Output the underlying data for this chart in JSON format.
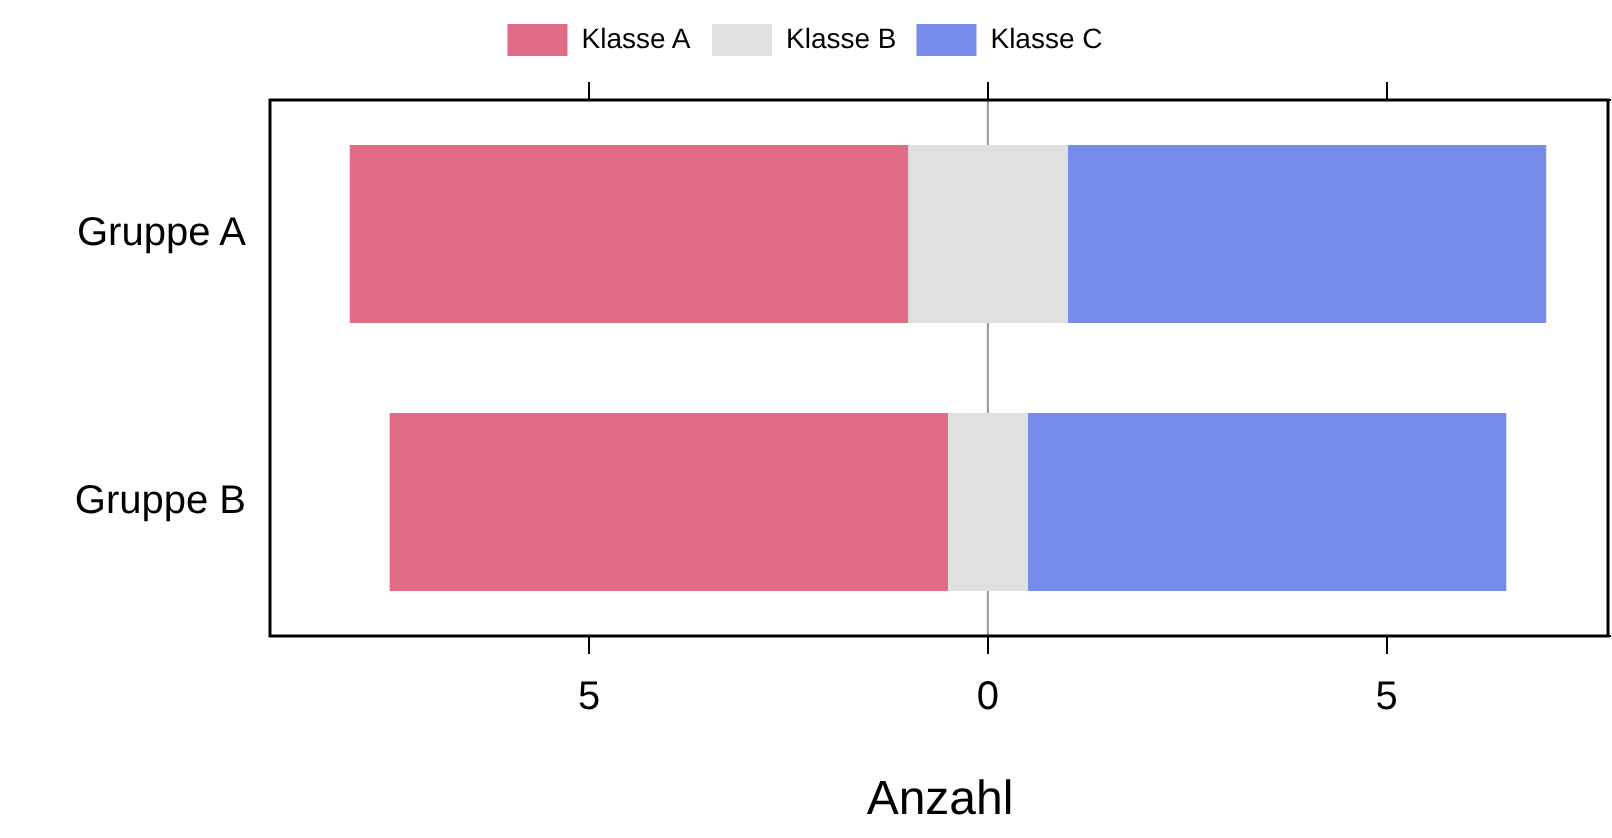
{
  "chart_data": {
    "type": "bar",
    "orientation": "horizontal",
    "xlabel": "Anzahl",
    "categories": [
      "Gruppe A",
      "Gruppe B"
    ],
    "series": [
      {
        "name": "Klasse A",
        "color": "#e06c85",
        "base": [
          -8,
          -7.5
        ],
        "values": [
          7,
          7
        ]
      },
      {
        "name": "Klasse B",
        "color": "#e0e0e0",
        "base": [
          -1,
          -0.5
        ],
        "values": [
          2,
          1
        ]
      },
      {
        "name": "Klasse C",
        "color": "#778beb",
        "base": [
          1,
          0.5
        ],
        "values": [
          6,
          6
        ]
      }
    ],
    "xlim": [
      -9,
      7.8
    ],
    "xticks": [
      {
        "value": -5,
        "label": "5"
      },
      0,
      5
    ],
    "ref_lines": [
      {
        "axis": "x",
        "value": 0,
        "color": "#999999"
      }
    ],
    "grid": false,
    "legend": "top"
  }
}
